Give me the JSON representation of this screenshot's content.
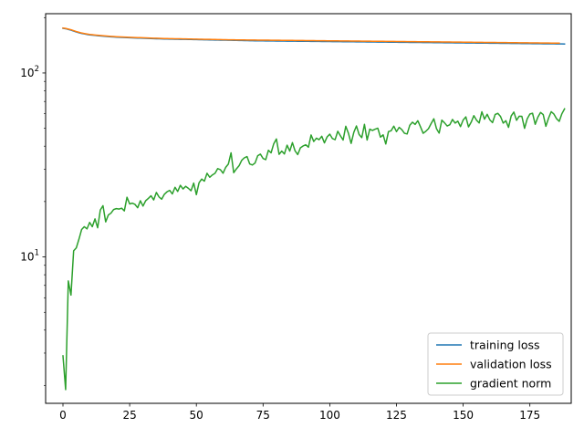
{
  "chart_data": {
    "type": "line",
    "yscale": "log",
    "xlim": [
      -6.5,
      190.5
    ],
    "ylim": [
      1.6,
      210
    ],
    "grid": false,
    "legend_position": "lower-right",
    "x_ticks": [
      0,
      25,
      50,
      75,
      100,
      125,
      150,
      175
    ],
    "x_tick_labels": [
      "0",
      "25",
      "50",
      "75",
      "100",
      "125",
      "150",
      "175"
    ],
    "y_major_ticks": [
      10,
      100
    ],
    "y_tick_labels": [
      {
        "base": "10",
        "exp": "1"
      },
      {
        "base": "10",
        "exp": "2"
      }
    ],
    "y_minor_ticks": [
      2,
      3,
      4,
      5,
      6,
      7,
      8,
      9,
      20,
      30,
      40,
      50,
      60,
      70,
      80,
      90,
      200
    ],
    "x_start": 0,
    "x_step": 1,
    "series": [
      {
        "name": "training loss",
        "color": "#1f77b4",
        "values": [
          175.0,
          174.0,
          172.5,
          171.0,
          169.0,
          167.0,
          165.5,
          164.0,
          163.0,
          162.0,
          161.0,
          160.5,
          160.0,
          159.5,
          159.0,
          158.5,
          158.0,
          157.6,
          157.2,
          156.9,
          156.6,
          156.3,
          156.0,
          155.8,
          155.6,
          155.4,
          155.2,
          155.0,
          154.8,
          154.6,
          154.4,
          154.2,
          154.0,
          153.8,
          153.6,
          153.5,
          153.3,
          153.2,
          153.0,
          152.9,
          152.8,
          152.7,
          152.6,
          152.5,
          152.4,
          152.3,
          152.2,
          152.1,
          152.0,
          151.9,
          151.8,
          151.7,
          151.6,
          151.5,
          151.4,
          151.3,
          151.2,
          151.1,
          151.0,
          150.9,
          150.8,
          150.7,
          150.6,
          150.5,
          150.4,
          150.3,
          150.2,
          150.1,
          150.0,
          149.9,
          149.8,
          149.7,
          149.6,
          149.5,
          149.45,
          149.4,
          149.35,
          149.3,
          149.25,
          149.2,
          149.15,
          149.1,
          149.05,
          149.0,
          148.95,
          148.9,
          148.85,
          148.8,
          148.75,
          148.7,
          148.65,
          148.6,
          148.55,
          148.5,
          148.45,
          148.4,
          148.35,
          148.3,
          148.25,
          148.2,
          148.15,
          148.1,
          148.05,
          148.0,
          147.95,
          147.9,
          147.85,
          147.8,
          147.75,
          147.7,
          147.65,
          147.6,
          147.55,
          147.5,
          147.45,
          147.4,
          147.35,
          147.3,
          147.25,
          147.2,
          147.15,
          147.1,
          147.05,
          147.0,
          146.95,
          146.9,
          146.85,
          146.8,
          146.75,
          146.7,
          146.65,
          146.6,
          146.55,
          146.5,
          146.45,
          146.4,
          146.35,
          146.3,
          146.25,
          146.2,
          146.15,
          146.1,
          146.05,
          146.0,
          145.95,
          145.9,
          145.85,
          145.8,
          145.75,
          145.7,
          145.65,
          145.6,
          145.55,
          145.5,
          145.45,
          145.4,
          145.35,
          145.3,
          145.25,
          145.2,
          145.15,
          145.1,
          145.05,
          145.0,
          144.95,
          144.9,
          144.85,
          144.8,
          144.75,
          144.7,
          144.65,
          144.6,
          144.55,
          144.5,
          144.45,
          144.4,
          144.35,
          144.3,
          144.25,
          144.2,
          144.15,
          144.1,
          144.05,
          144.0,
          143.95,
          143.9,
          143.85,
          143.8,
          143.75
        ]
      },
      {
        "name": "validation loss",
        "color": "#ff7f0e",
        "values": [
          175.5,
          174.6,
          173.2,
          171.8,
          169.8,
          167.9,
          166.4,
          164.9,
          163.9,
          162.9,
          161.9,
          161.4,
          160.9,
          160.4,
          159.9,
          159.4,
          158.9,
          158.5,
          158.1,
          157.8,
          157.5,
          157.2,
          156.9,
          156.7,
          156.5,
          156.3,
          156.1,
          155.9,
          155.7,
          155.5,
          155.3,
          155.1,
          154.9,
          154.7,
          154.5,
          154.4,
          154.2,
          154.1,
          153.9,
          153.8,
          153.7,
          153.6,
          153.5,
          153.4,
          153.3,
          153.2,
          153.1,
          153.0,
          152.9,
          152.8,
          152.7,
          152.6,
          152.5,
          152.4,
          152.3,
          152.2,
          152.1,
          152.0,
          151.9,
          151.8,
          151.7,
          151.6,
          151.5,
          151.4,
          151.35,
          151.3,
          151.25,
          151.2,
          151.15,
          151.1,
          151.05,
          151.0,
          150.95,
          150.9,
          150.85,
          150.8,
          150.75,
          150.7,
          150.65,
          150.6,
          150.55,
          150.5,
          150.45,
          150.4,
          150.35,
          150.3,
          150.25,
          150.2,
          150.15,
          150.1,
          150.05,
          150.0,
          149.95,
          149.9,
          149.85,
          149.8,
          149.75,
          149.7,
          149.65,
          149.6,
          149.55,
          149.5,
          149.45,
          149.4,
          149.35,
          149.3,
          149.25,
          149.2,
          149.15,
          149.1,
          149.05,
          149.0,
          148.95,
          148.9,
          148.85,
          148.8,
          148.75,
          148.7,
          148.65,
          148.6,
          148.55,
          148.5,
          148.45,
          148.4,
          148.35,
          148.3,
          148.25,
          148.2,
          148.15,
          148.1,
          148.05,
          148.0,
          147.95,
          147.9,
          147.85,
          147.8,
          147.75,
          147.7,
          147.65,
          147.6,
          147.55,
          147.5,
          147.45,
          147.4,
          147.35,
          147.3,
          147.25,
          147.2,
          147.15,
          147.1,
          147.05,
          147.0,
          146.95,
          146.9,
          146.85,
          146.8,
          146.75,
          146.7,
          146.65,
          146.6,
          146.55,
          146.5,
          146.45,
          146.4,
          146.35,
          146.3,
          146.25,
          146.2,
          146.15,
          146.1,
          146.05,
          146.0,
          145.95,
          145.9,
          145.85,
          145.8,
          145.75,
          145.7,
          145.65,
          145.6,
          145.55,
          145.5,
          145.45,
          145.4,
          145.35,
          145.3,
          145.25
        ]
      },
      {
        "name": "gradient norm",
        "color": "#2ca02c",
        "values": [
          2.9,
          1.9,
          7.4,
          6.2,
          10.8,
          11.2,
          12.5,
          14.1,
          14.6,
          14.2,
          15.4,
          14.6,
          16.1,
          14.4,
          18.0,
          19.0,
          15.5,
          16.9,
          17.3,
          18.1,
          18.3,
          18.2,
          18.4,
          17.8,
          21.1,
          19.4,
          19.6,
          19.3,
          18.5,
          20.2,
          18.9,
          20.2,
          20.8,
          21.5,
          20.4,
          22.4,
          21.2,
          20.6,
          21.9,
          22.6,
          23.0,
          22.0,
          23.9,
          22.7,
          24.5,
          23.4,
          24.2,
          23.6,
          22.9,
          25.2,
          21.8,
          25.3,
          26.5,
          25.8,
          28.5,
          27.1,
          27.9,
          28.5,
          30.2,
          29.8,
          28.5,
          30.7,
          32.0,
          36.8,
          28.7,
          30.1,
          31.3,
          33.5,
          34.6,
          35.1,
          32.0,
          31.6,
          32.4,
          35.5,
          36.2,
          34.3,
          33.8,
          38.0,
          36.8,
          41.2,
          43.8,
          36.1,
          37.6,
          36.3,
          40.5,
          37.6,
          41.8,
          37.7,
          36.0,
          39.2,
          40.1,
          40.7,
          39.5,
          46.0,
          42.4,
          44.2,
          43.4,
          45.3,
          41.7,
          44.9,
          46.5,
          44.0,
          43.4,
          48.2,
          45.5,
          43.2,
          51.3,
          47.0,
          41.4,
          47.5,
          51.5,
          46.3,
          44.5,
          52.6,
          43.2,
          49.5,
          48.7,
          49.5,
          50.1,
          44.8,
          46.1,
          41.1,
          48.0,
          48.5,
          51.4,
          48.0,
          50.6,
          49.2,
          47.0,
          46.6,
          52.0,
          54.0,
          52.5,
          55.0,
          51.0,
          47.0,
          48.2,
          49.8,
          53.1,
          56.4,
          49.8,
          47.1,
          55.4,
          53.6,
          51.5,
          52.3,
          55.9,
          53.4,
          54.7,
          51.1,
          55.5,
          57.7,
          50.9,
          54.0,
          58.6,
          55.4,
          53.5,
          61.5,
          56.1,
          59.6,
          55.6,
          53.7,
          59.5,
          60.3,
          58.0,
          53.4,
          55.0,
          50.6,
          58.4,
          61.3,
          55.3,
          58.2,
          58.1,
          50.0,
          56.3,
          59.8,
          60.4,
          52.6,
          57.5,
          61.0,
          59.4,
          51.3,
          56.8,
          61.6,
          59.8,
          56.4,
          54.6,
          60.0,
          63.8
        ]
      }
    ]
  }
}
